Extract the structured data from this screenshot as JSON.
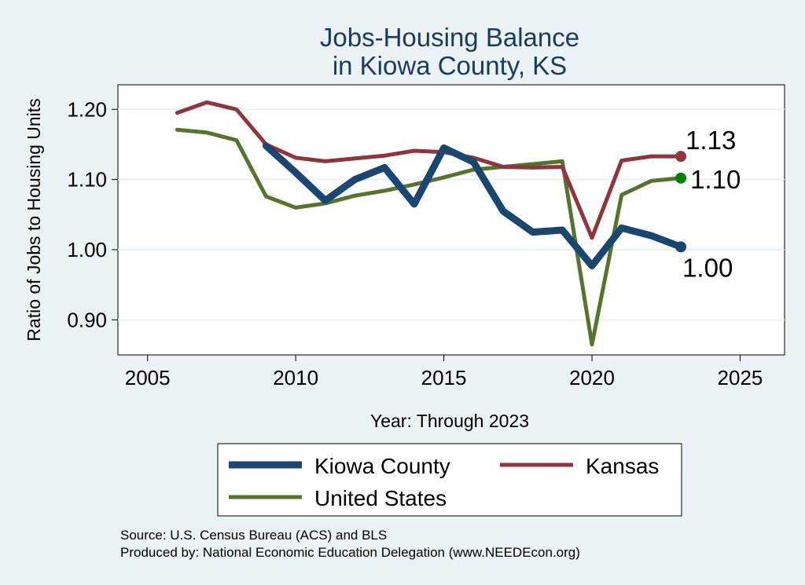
{
  "chart_data": {
    "type": "line",
    "title": [
      "Jobs-Housing Balance",
      "in Kiowa County, KS"
    ],
    "xlabel": "Year: Through 2023",
    "ylabel": "Ratio of Jobs to Housing Units",
    "xlim": [
      2004,
      2026.5
    ],
    "ylim": [
      0.85,
      1.235
    ],
    "x_ticks": [
      2005,
      2010,
      2015,
      2020,
      2025
    ],
    "x_tick_labels": [
      "2005",
      "2010",
      "2015",
      "2020",
      "2025"
    ],
    "y_ticks": [
      0.9,
      1.0,
      1.1,
      1.2
    ],
    "y_tick_labels": [
      "0.90",
      "1.00",
      "1.10",
      "1.20"
    ],
    "grid": true,
    "series": [
      {
        "name": "Kiowa County",
        "color": "#1a476f",
        "x": [
          2009,
          2010,
          2011,
          2012,
          2013,
          2014,
          2015,
          2016,
          2017,
          2018,
          2019,
          2020,
          2021,
          2022,
          2023
        ],
        "values": [
          1.148,
          1.11,
          1.07,
          1.1,
          1.117,
          1.065,
          1.145,
          1.125,
          1.055,
          1.025,
          1.028,
          0.977,
          1.031,
          1.02,
          1.004
        ],
        "end_label": "1.00"
      },
      {
        "name": "Kansas",
        "color": "#90353b",
        "x": [
          2006,
          2007,
          2008,
          2009,
          2010,
          2011,
          2012,
          2013,
          2014,
          2015,
          2016,
          2017,
          2018,
          2019,
          2020,
          2021,
          2022,
          2023
        ],
        "values": [
          1.195,
          1.21,
          1.2,
          1.15,
          1.131,
          1.126,
          1.13,
          1.134,
          1.141,
          1.139,
          1.131,
          1.118,
          1.117,
          1.118,
          1.017,
          1.127,
          1.133,
          1.133
        ],
        "end_label": "1.13"
      },
      {
        "name": "United States",
        "color": "#55752f",
        "x": [
          2006,
          2007,
          2008,
          2009,
          2010,
          2011,
          2012,
          2013,
          2014,
          2015,
          2016,
          2017,
          2018,
          2019,
          2020,
          2021,
          2022,
          2023
        ],
        "values": [
          1.171,
          1.167,
          1.156,
          1.076,
          1.06,
          1.066,
          1.077,
          1.084,
          1.093,
          1.103,
          1.114,
          1.118,
          1.122,
          1.126,
          0.865,
          1.078,
          1.098,
          1.102
        ],
        "end_label": "1.10",
        "end_marker_color": "#008000"
      }
    ],
    "legend": {
      "position": "bottom",
      "entries": [
        "Kiowa County",
        "Kansas",
        "United States"
      ]
    },
    "notes": [
      "Source: U.S. Census Bureau (ACS) and BLS",
      "Produced by: National Economic Education Delegation (www.NEEDEcon.org)"
    ]
  }
}
